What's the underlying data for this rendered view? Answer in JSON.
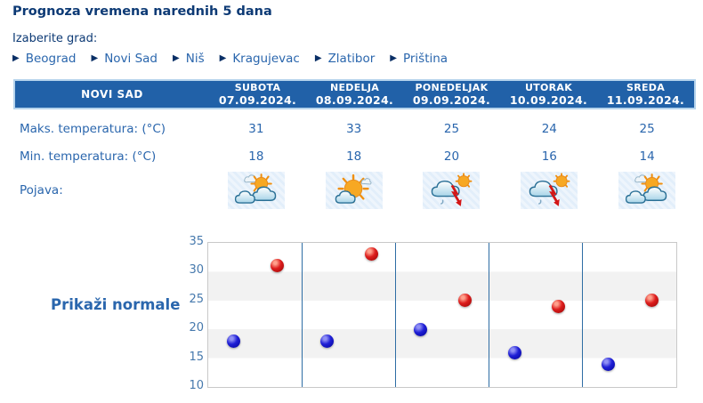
{
  "page": {
    "title": "Prognoza vremena narednih 5 dana",
    "choose_city_label": "Izaberite grad:"
  },
  "cities": [
    "Beograd",
    "Novi Sad",
    "Niš",
    "Kragujevac",
    "Zlatibor",
    "Priština"
  ],
  "table": {
    "station": "NOVI SAD",
    "days": [
      {
        "name": "SUBOTA",
        "date": "07.09.2024."
      },
      {
        "name": "NEDELJA",
        "date": "08.09.2024."
      },
      {
        "name": "PONEDELJAK",
        "date": "09.09.2024."
      },
      {
        "name": "UTORAK",
        "date": "10.09.2024."
      },
      {
        "name": "SREDA",
        "date": "11.09.2024."
      }
    ],
    "row_labels": {
      "max": "Maks. temperatura: (°C)",
      "min": "Min. temperatura: (°C)",
      "pojava": "Pojava:"
    }
  },
  "forecast": {
    "max": [
      31,
      33,
      25,
      24,
      25
    ],
    "min": [
      18,
      18,
      20,
      16,
      14
    ],
    "icons": [
      "partly-cloudy",
      "mostly-sunny",
      "thunderstorm",
      "thunderstorm",
      "partly-cloudy"
    ]
  },
  "normals_link_label": "Prikaži normale",
  "colors": {
    "header_bg": "#2161a8",
    "header_border": "#b5d3ec",
    "text_blue": "#2a66ad",
    "dark_navy": "#0d3a75",
    "chart_band_gray": "#f2f2f2",
    "chart_separator": "#2e6da4",
    "dot_max": "#cc0000",
    "dot_min": "#1111cc"
  },
  "chart_data": {
    "type": "scatter",
    "categories": [
      "SUBOTA 07.09.2024.",
      "NEDELJA 08.09.2024.",
      "PONEDELJAK 09.09.2024.",
      "UTORAK 10.09.2024.",
      "SREDA 11.09.2024."
    ],
    "series": [
      {
        "name": "Maks. temperatura (°C)",
        "color": "#cc0000",
        "values": [
          31,
          33,
          25,
          24,
          25
        ]
      },
      {
        "name": "Min. temperatura (°C)",
        "color": "#1111cc",
        "values": [
          18,
          18,
          20,
          16,
          14
        ]
      }
    ],
    "ylim": [
      10,
      35
    ],
    "yticks": [
      35,
      30,
      25,
      20,
      15,
      10
    ],
    "grid": "horizontal bands every 5°C, alternating white/gray",
    "legend": "none",
    "title": "",
    "xlabel": "",
    "ylabel": ""
  }
}
